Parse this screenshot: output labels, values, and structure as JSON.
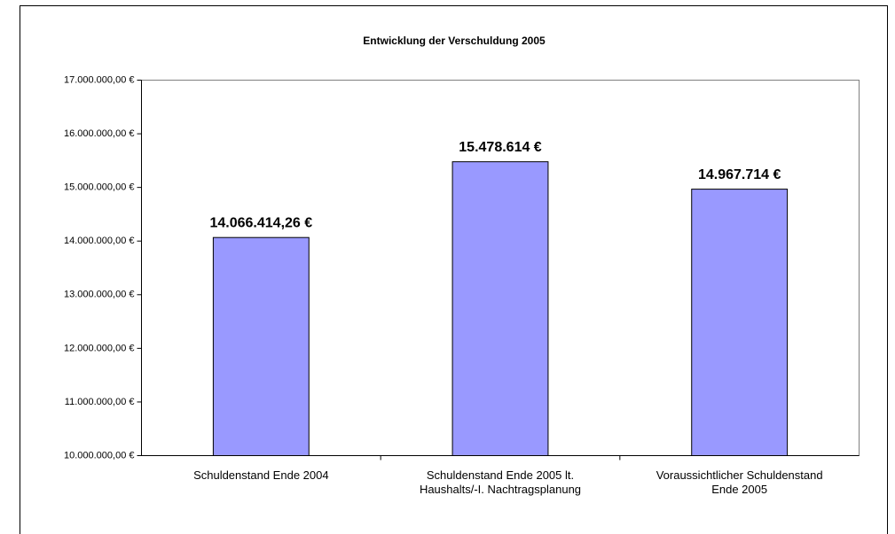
{
  "chart_data": {
    "type": "bar",
    "title": "Entwicklung der Verschuldung 2005",
    "categories": [
      "Schuldenstand Ende 2004",
      "Schuldenstand Ende 2005 lt.\nHaushalts/-I. Nachtragsplanung",
      "Voraussichtlicher Schuldenstand\nEnde 2005"
    ],
    "values": [
      14066414.26,
      15478614,
      14967714
    ],
    "value_labels": [
      "14.066.414,26 €",
      "15.478.614 €",
      "14.967.714 €"
    ],
    "color": "#9999ff",
    "ylim": [
      10000000,
      17000000
    ],
    "yticks": [
      {
        "value": 10000000,
        "label": "10.000.000,00 €"
      },
      {
        "value": 11000000,
        "label": "11.000.000,00 €"
      },
      {
        "value": 12000000,
        "label": "12.000.000,00 €"
      },
      {
        "value": 13000000,
        "label": "13.000.000,00 €"
      },
      {
        "value": 14000000,
        "label": "14.000.000,00 €"
      },
      {
        "value": 15000000,
        "label": "15.000.000,00 €"
      },
      {
        "value": 16000000,
        "label": "16.000.000,00 €"
      },
      {
        "value": 17000000,
        "label": "17.000.000,00 €"
      }
    ],
    "grid": false
  }
}
